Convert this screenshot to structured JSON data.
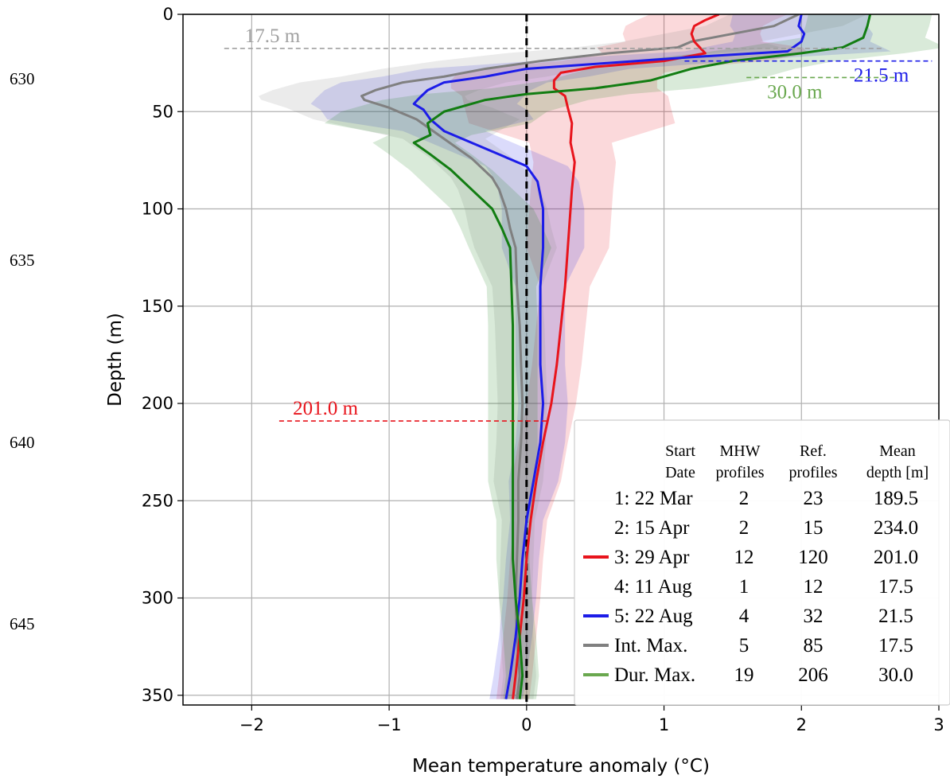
{
  "line_numbers": [
    "630",
    "635",
    "640",
    "645"
  ],
  "chart_data": {
    "type": "line",
    "xlabel": "Mean temperature anomaly (°C)",
    "ylabel": "Depth (m)",
    "xlim": [
      -2.5,
      3
    ],
    "ylim": [
      355,
      0
    ],
    "x_ticks": [
      -2,
      -1,
      0,
      1,
      2,
      3
    ],
    "x_tick_labels": [
      "−2",
      "−1",
      "0",
      "1",
      "2",
      "3"
    ],
    "y_ticks": [
      0,
      50,
      100,
      150,
      200,
      250,
      300,
      350
    ],
    "y_tick_labels": [
      "0",
      "50",
      "100",
      "150",
      "200",
      "250",
      "300",
      "350"
    ],
    "grid": true,
    "zero_line": {
      "x": 0,
      "color": "#000000",
      "style": "dashed"
    },
    "colors": {
      "red": "#e8141c",
      "blue": "#1c1ce8",
      "gray": "#808080",
      "green": "#127d12",
      "green_text": "#6aa84f"
    },
    "series": [
      {
        "key": "red",
        "color": "#e8141c",
        "points": [
          [
            1.4,
            0
          ],
          [
            1.3,
            3
          ],
          [
            1.22,
            6
          ],
          [
            1.2,
            10
          ],
          [
            1.22,
            14
          ],
          [
            1.26,
            17
          ],
          [
            1.3,
            20
          ],
          [
            1.0,
            24
          ],
          [
            0.5,
            27
          ],
          [
            0.25,
            30
          ],
          [
            0.2,
            34
          ],
          [
            0.2,
            38
          ],
          [
            0.28,
            42
          ],
          [
            0.3,
            48
          ],
          [
            0.33,
            56
          ],
          [
            0.32,
            66
          ],
          [
            0.35,
            76
          ],
          [
            0.33,
            90
          ],
          [
            0.32,
            100
          ],
          [
            0.3,
            120
          ],
          [
            0.28,
            140
          ],
          [
            0.25,
            160
          ],
          [
            0.22,
            180
          ],
          [
            0.18,
            200
          ],
          [
            0.12,
            220
          ],
          [
            0.07,
            240
          ],
          [
            0.03,
            260
          ],
          [
            0.0,
            280
          ],
          [
            -0.02,
            300
          ],
          [
            -0.05,
            320
          ],
          [
            -0.08,
            340
          ],
          [
            -0.1,
            352
          ]
        ]
      },
      {
        "key": "blue",
        "color": "#1c1ce8",
        "points": [
          [
            2.0,
            0
          ],
          [
            1.98,
            6
          ],
          [
            2.02,
            10
          ],
          [
            2.0,
            14
          ],
          [
            1.9,
            19
          ],
          [
            1.2,
            22
          ],
          [
            0.6,
            25
          ],
          [
            0.0,
            28
          ],
          [
            -0.3,
            32
          ],
          [
            -0.6,
            35
          ],
          [
            -0.72,
            39
          ],
          [
            -0.78,
            43
          ],
          [
            -0.82,
            46
          ],
          [
            -0.75,
            49
          ],
          [
            -0.7,
            54
          ],
          [
            -0.6,
            60
          ],
          [
            -0.4,
            66
          ],
          [
            -0.2,
            72
          ],
          [
            0.0,
            78
          ],
          [
            0.08,
            86
          ],
          [
            0.12,
            100
          ],
          [
            0.12,
            120
          ],
          [
            0.1,
            140
          ],
          [
            0.1,
            160
          ],
          [
            0.1,
            180
          ],
          [
            0.12,
            200
          ],
          [
            0.1,
            220
          ],
          [
            0.05,
            240
          ],
          [
            0.0,
            260
          ],
          [
            -0.03,
            280
          ],
          [
            -0.05,
            300
          ],
          [
            -0.08,
            320
          ],
          [
            -0.12,
            340
          ],
          [
            -0.15,
            352
          ]
        ]
      },
      {
        "key": "gray",
        "color": "#808080",
        "points": [
          [
            1.98,
            0
          ],
          [
            1.8,
            6
          ],
          [
            1.5,
            10
          ],
          [
            1.2,
            14
          ],
          [
            1.1,
            17
          ],
          [
            0.6,
            20
          ],
          [
            0.1,
            24
          ],
          [
            -0.3,
            28
          ],
          [
            -0.6,
            32
          ],
          [
            -0.9,
            35
          ],
          [
            -1.1,
            39
          ],
          [
            -1.2,
            42
          ],
          [
            -1.18,
            44
          ],
          [
            -1.0,
            48
          ],
          [
            -0.8,
            54
          ],
          [
            -0.6,
            64
          ],
          [
            -0.4,
            74
          ],
          [
            -0.25,
            84
          ],
          [
            -0.2,
            90
          ],
          [
            -0.15,
            100
          ],
          [
            -0.12,
            110
          ],
          [
            -0.08,
            120
          ],
          [
            -0.07,
            140
          ],
          [
            -0.05,
            160
          ],
          [
            -0.04,
            180
          ],
          [
            -0.03,
            200
          ],
          [
            -0.04,
            220
          ],
          [
            -0.06,
            240
          ],
          [
            -0.06,
            260
          ],
          [
            -0.07,
            280
          ],
          [
            -0.08,
            300
          ],
          [
            -0.07,
            320
          ],
          [
            -0.05,
            340
          ],
          [
            -0.07,
            352
          ]
        ]
      },
      {
        "key": "green",
        "color": "#127d12",
        "points": [
          [
            2.5,
            0
          ],
          [
            2.48,
            6
          ],
          [
            2.45,
            12
          ],
          [
            2.3,
            17
          ],
          [
            2.0,
            20
          ],
          [
            1.5,
            24
          ],
          [
            1.2,
            28
          ],
          [
            0.9,
            34
          ],
          [
            0.5,
            38
          ],
          [
            0.0,
            41
          ],
          [
            -0.3,
            44
          ],
          [
            -0.6,
            50
          ],
          [
            -0.72,
            56
          ],
          [
            -0.7,
            62
          ],
          [
            -0.82,
            66
          ],
          [
            -0.7,
            72
          ],
          [
            -0.55,
            80
          ],
          [
            -0.4,
            90
          ],
          [
            -0.25,
            100
          ],
          [
            -0.18,
            110
          ],
          [
            -0.12,
            120
          ],
          [
            -0.11,
            140
          ],
          [
            -0.1,
            160
          ],
          [
            -0.1,
            180
          ],
          [
            -0.1,
            200
          ],
          [
            -0.1,
            220
          ],
          [
            -0.1,
            240
          ],
          [
            -0.1,
            260
          ],
          [
            -0.1,
            280
          ],
          [
            -0.08,
            300
          ],
          [
            -0.05,
            320
          ],
          [
            -0.03,
            340
          ],
          [
            -0.05,
            352
          ]
        ]
      }
    ],
    "annotations": [
      {
        "key": "gray",
        "text": "17.5 m",
        "depth": 17.5,
        "line_x": [
          -2.2,
          2.6
        ],
        "label_x": -2.05,
        "color": "#a0a0a0"
      },
      {
        "key": "blue",
        "text": "21.5 m",
        "depth": 24,
        "line_x": [
          1.15,
          2.95
        ],
        "label_x": 2.38,
        "color": "#1c1ce8"
      },
      {
        "key": "green",
        "text": "30.0 m",
        "depth": 32.5,
        "line_x": [
          1.6,
          2.7
        ],
        "label_x": 1.75,
        "color": "#6aa84f"
      },
      {
        "key": "red",
        "text": "201.0 m",
        "depth": 209,
        "line_x": [
          -1.8,
          0.15
        ],
        "label_x": -1.7,
        "color": "#e8141c"
      }
    ],
    "legend": {
      "placement": "lower-right",
      "header": [
        [
          "Start",
          "Date"
        ],
        [
          "MHW",
          "profiles"
        ],
        [
          "Ref.",
          "profiles"
        ],
        [
          "Mean",
          "depth [m]"
        ]
      ],
      "rows": [
        {
          "label": "1: 22 Mar",
          "mhw": "2",
          "ref": "23",
          "depth": "189.5",
          "color": ""
        },
        {
          "label": "2: 15 Apr",
          "mhw": "2",
          "ref": "15",
          "depth": "234.0",
          "color": ""
        },
        {
          "label": "3: 29 Apr",
          "mhw": "12",
          "ref": "120",
          "depth": "201.0",
          "color": "#e8141c"
        },
        {
          "label": "4: 11 Aug",
          "mhw": "1",
          "ref": "12",
          "depth": "17.5",
          "color": ""
        },
        {
          "label": "5: 22 Aug",
          "mhw": "4",
          "ref": "32",
          "depth": "21.5",
          "color": "#1c1ce8"
        },
        {
          "label": "Int. Max.",
          "mhw": "5",
          "ref": "85",
          "depth": "17.5",
          "color": "#808080"
        },
        {
          "label": "Dur. Max.",
          "mhw": "19",
          "ref": "206",
          "depth": "30.0",
          "color": "#6aa84f"
        }
      ]
    }
  }
}
